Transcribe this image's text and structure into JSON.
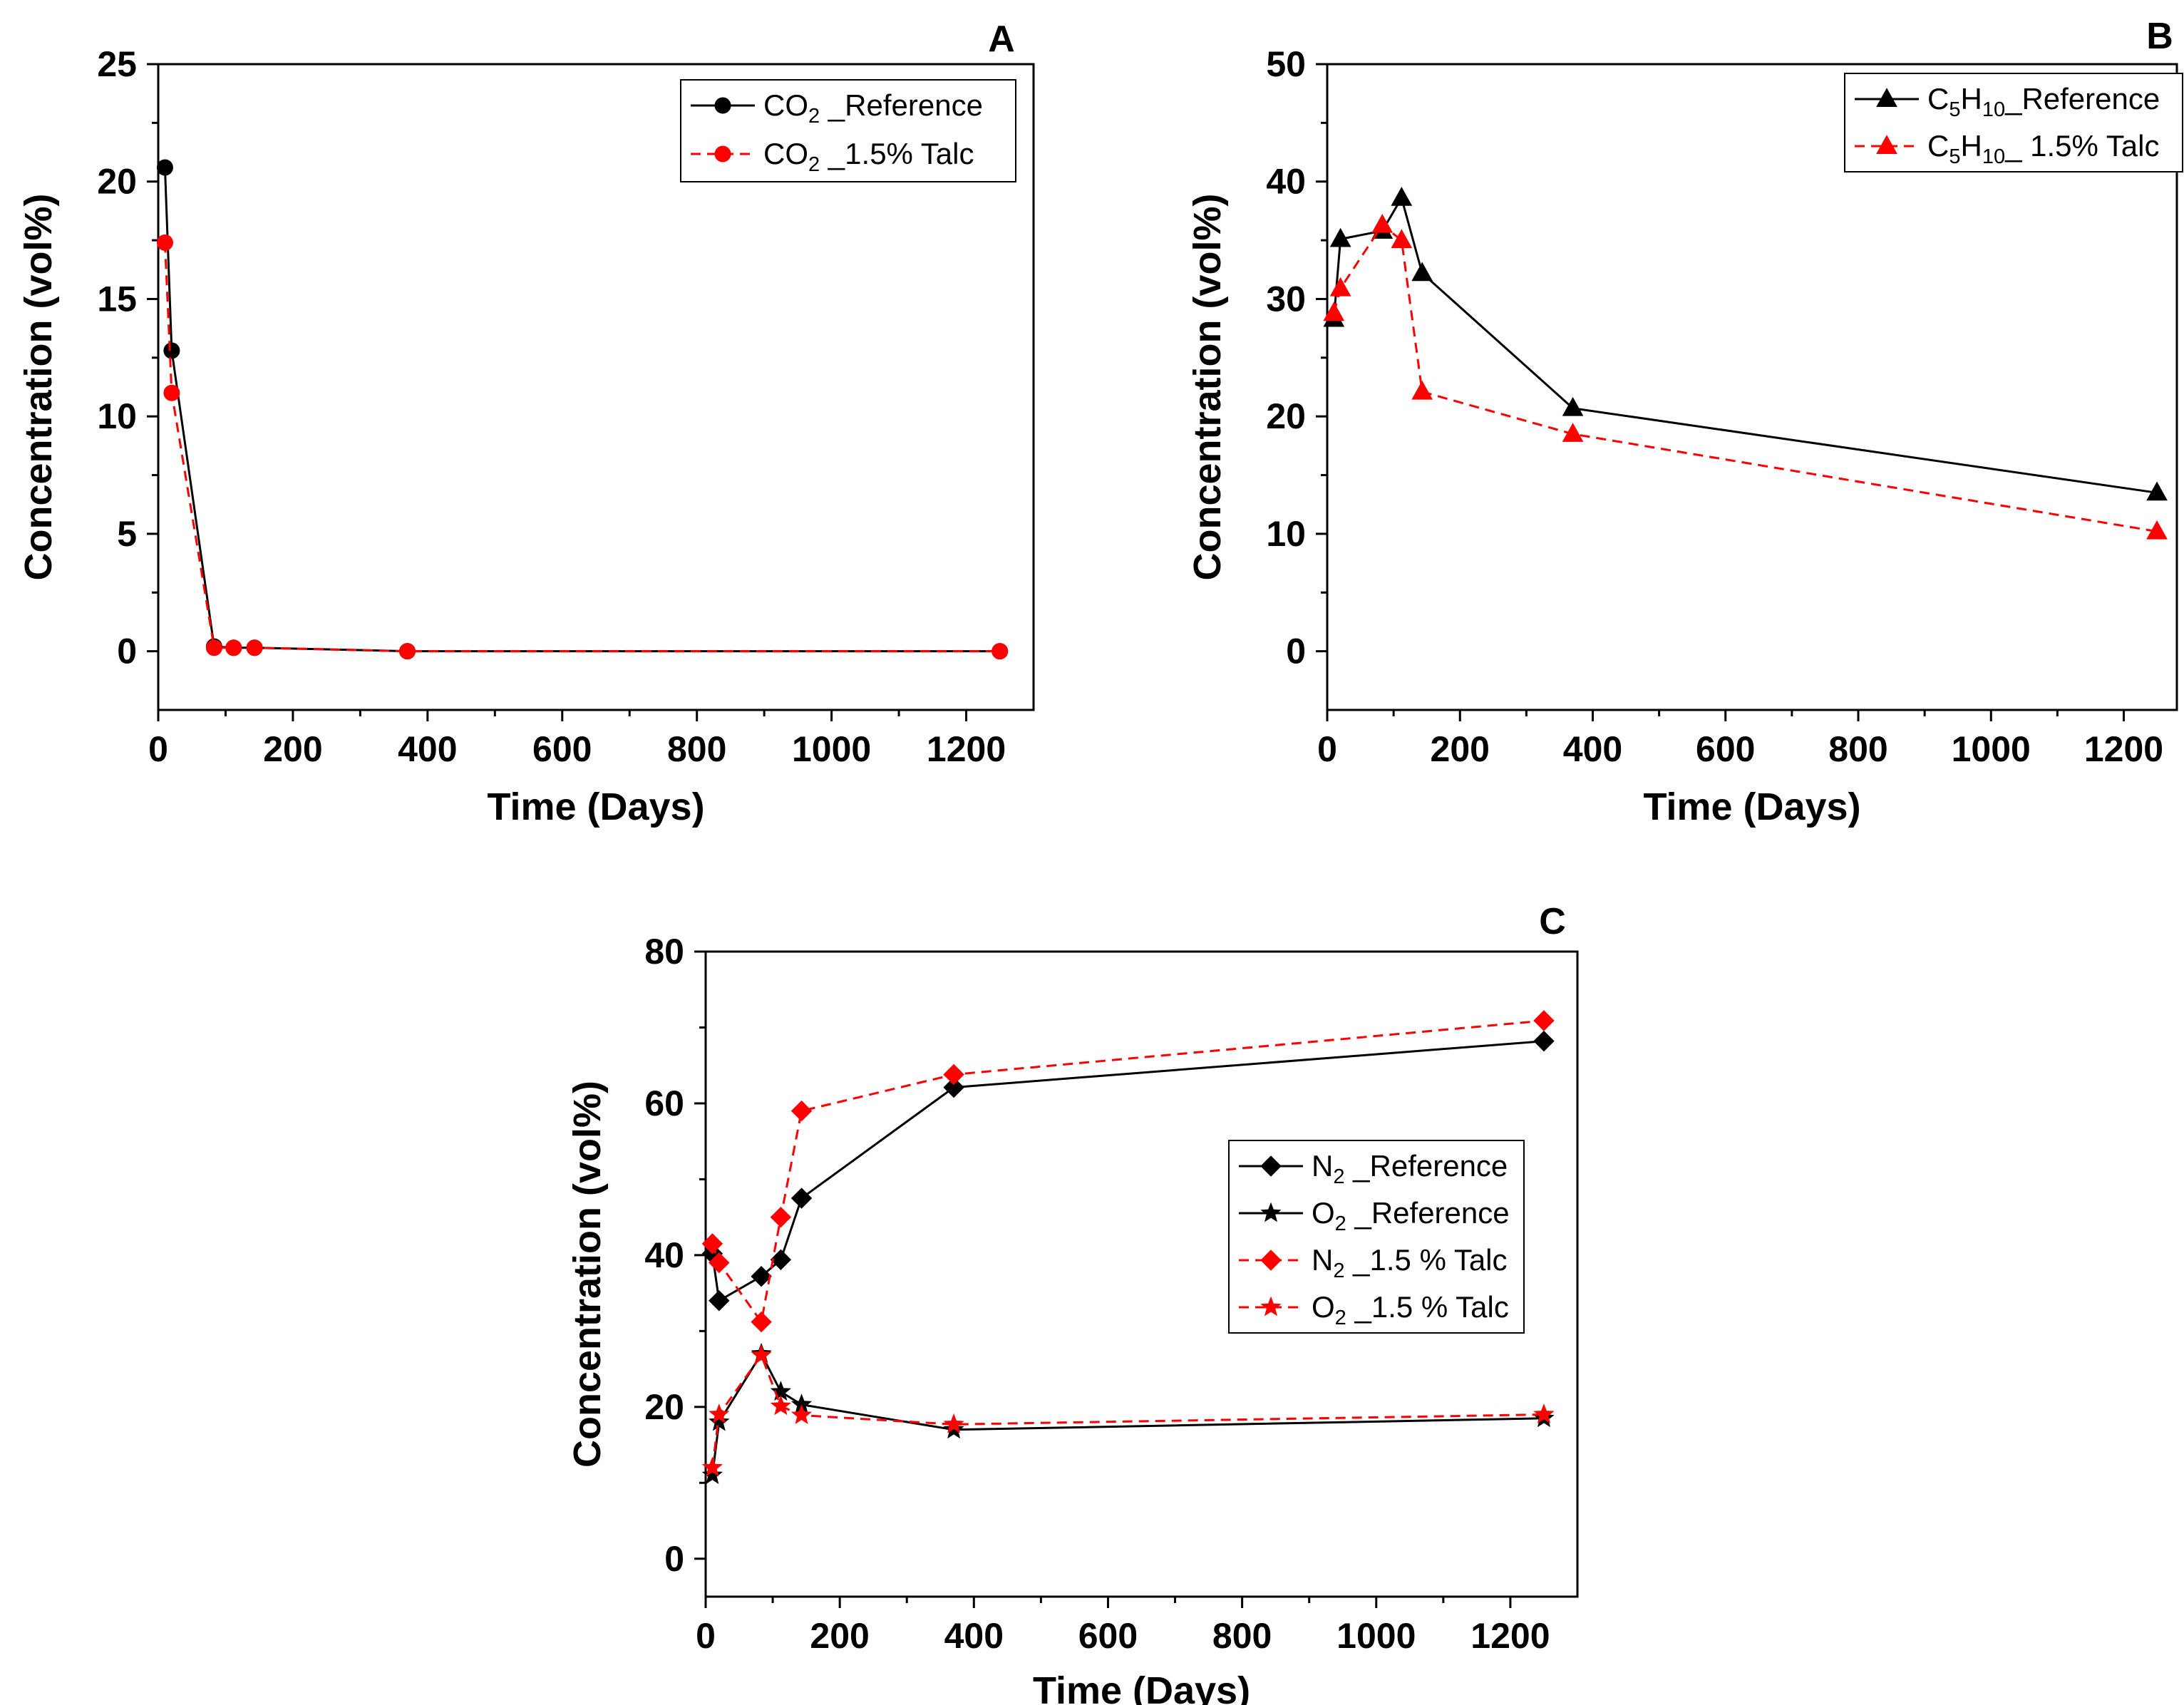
{
  "figure": {
    "panel_letters": [
      "A",
      "B",
      "C"
    ]
  },
  "chart_data": [
    {
      "type": "line",
      "panel": "A",
      "xlabel": "Time (Days)",
      "ylabel": "Concentration (vol%)",
      "xlim": [
        0,
        1300
      ],
      "ylim": [
        -2.5,
        25
      ],
      "xticks": [
        0,
        200,
        400,
        600,
        800,
        1000,
        1200
      ],
      "yticks": [
        0,
        5,
        10,
        15,
        20,
        25
      ],
      "legend_position": "top-right",
      "series": [
        {
          "name": "CO2 _Reference",
          "legend": {
            "pre": "CO",
            "sub": "2",
            "post": " _Reference"
          },
          "color": "#000000",
          "dashed": false,
          "marker": "circle",
          "x": [
            10,
            20,
            83,
            112,
            143,
            370,
            1250
          ],
          "y": [
            20.6,
            12.8,
            0.2,
            0.15,
            0.15,
            0.0,
            0.0
          ]
        },
        {
          "name": "CO2 _1.5% Talc",
          "legend": {
            "pre": "CO",
            "sub": "2",
            "post": " _1.5% Talc"
          },
          "color": "#ff0000",
          "dashed": true,
          "marker": "circle",
          "x": [
            10,
            20,
            83,
            112,
            143,
            370,
            1250
          ],
          "y": [
            17.4,
            11.0,
            0.15,
            0.15,
            0.15,
            0.0,
            0.0
          ]
        }
      ]
    },
    {
      "type": "line",
      "panel": "B",
      "xlabel": "Time (Days)",
      "ylabel": "Concentration (vol%)",
      "xlim": [
        0,
        1280
      ],
      "ylim": [
        -5,
        50
      ],
      "xticks": [
        0,
        200,
        400,
        600,
        800,
        1000,
        1200
      ],
      "yticks": [
        0,
        10,
        20,
        30,
        40,
        50
      ],
      "legend_position": "top-right",
      "series": [
        {
          "name": "C5H10_Reference",
          "legend": {
            "pre": "C",
            "sub": "5",
            "mid": "H",
            "sub2": "10",
            "post": "_Reference"
          },
          "color": "#000000",
          "dashed": false,
          "marker": "triangle",
          "x": [
            10,
            20,
            83,
            112,
            143,
            370,
            1250
          ],
          "y": [
            28.3,
            35.1,
            35.8,
            38.6,
            32.2,
            20.7,
            13.5
          ]
        },
        {
          "name": "C5H10_ 1.5% Talc",
          "legend": {
            "pre": "C",
            "sub": "5",
            "mid": "H",
            "sub2": "10",
            "post": "_ 1.5% Talc"
          },
          "color": "#ff0000",
          "dashed": true,
          "marker": "triangle",
          "x": [
            10,
            20,
            83,
            112,
            143,
            370,
            1250
          ],
          "y": [
            28.8,
            30.9,
            36.3,
            35.0,
            22.1,
            18.5,
            10.2
          ]
        }
      ]
    },
    {
      "type": "line",
      "panel": "C",
      "xlabel": "Time (Days)",
      "ylabel": "Concentration (vol%)",
      "xlim": [
        0,
        1300
      ],
      "ylim": [
        -5,
        80
      ],
      "xticks": [
        0,
        200,
        400,
        600,
        800,
        1000,
        1200
      ],
      "yticks": [
        0,
        20,
        40,
        60,
        80
      ],
      "legend_position": "center-right",
      "series": [
        {
          "name": "N2 _Reference",
          "legend": {
            "pre": "N",
            "sub": "2",
            "post": " _Reference"
          },
          "color": "#000000",
          "dashed": false,
          "marker": "diamond",
          "x": [
            10,
            20,
            83,
            112,
            143,
            370,
            1250
          ],
          "y": [
            40.2,
            34.0,
            37.2,
            39.4,
            47.5,
            62.1,
            68.2
          ]
        },
        {
          "name": "O2 _Reference",
          "legend": {
            "pre": "O",
            "sub": "2",
            "post": " _Reference"
          },
          "color": "#000000",
          "dashed": false,
          "marker": "star",
          "x": [
            10,
            20,
            83,
            112,
            143,
            370,
            1250
          ],
          "y": [
            11.0,
            18.0,
            27.0,
            22.0,
            20.3,
            17.0,
            18.5
          ]
        },
        {
          "name": "N2 _1.5 % Talc",
          "legend": {
            "pre": "N",
            "sub": "2",
            "post": " _1.5 % Talc"
          },
          "color": "#ff0000",
          "dashed": true,
          "marker": "diamond",
          "x": [
            10,
            20,
            83,
            112,
            143,
            370,
            1250
          ],
          "y": [
            41.5,
            39.0,
            31.2,
            45.0,
            59.0,
            63.8,
            70.9
          ]
        },
        {
          "name": "O2 _1.5 % Talc",
          "legend": {
            "pre": "O",
            "sub": "2",
            "post": " _1.5 % Talc"
          },
          "color": "#ff0000",
          "dashed": true,
          "marker": "star",
          "x": [
            10,
            20,
            83,
            112,
            143,
            370,
            1250
          ],
          "y": [
            12.0,
            19.0,
            26.8,
            20.1,
            18.9,
            17.7,
            19.0
          ]
        }
      ]
    }
  ]
}
